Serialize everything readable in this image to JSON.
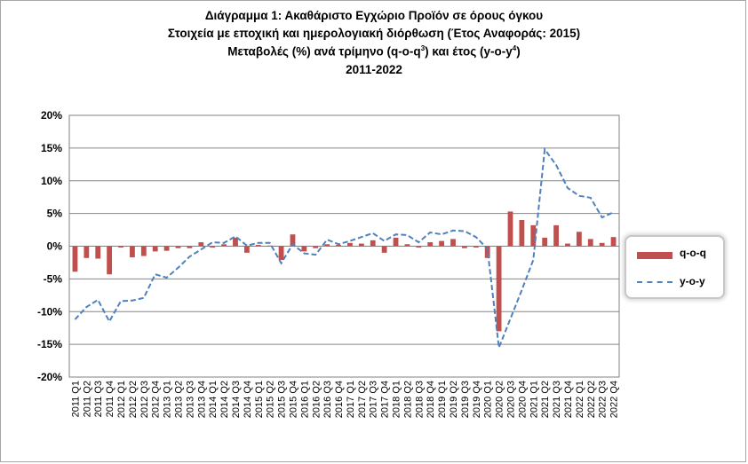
{
  "title": {
    "line1": "Διάγραμμα 1: Ακαθάριστο Εγχώριο Προϊόν σε όρους όγκου",
    "line2": "Στοιχεία με εποχική και ημερολογιακή διόρθωση (Έτος Αναφοράς: 2015)",
    "line3_pre": "Μεταβολές (%) ανά τρίμηνο (q-o-q",
    "line3_sup1": "3",
    "line3_mid": ") και έτος (y-o-y",
    "line3_sup2": "4",
    "line3_post": ")",
    "line4": "2011-2022"
  },
  "chart_data": {
    "type": "bar",
    "ylim": [
      -20,
      20
    ],
    "yticks": [
      "-20%",
      "-15%",
      "-10%",
      "-5%",
      "0%",
      "5%",
      "10%",
      "15%",
      "20%"
    ],
    "ytick_values": [
      -20,
      -15,
      -10,
      -5,
      0,
      5,
      10,
      15,
      20
    ],
    "grid": true,
    "legend_position": "right",
    "categories": [
      "2011 Q1",
      "2011 Q2",
      "2011 Q3",
      "2011 Q4",
      "2012 Q1",
      "2012 Q2",
      "2012 Q3",
      "2012 Q4",
      "2013 Q1",
      "2013 Q2",
      "2013 Q3",
      "2013 Q4",
      "2014 Q1",
      "2014 Q2",
      "2014 Q3",
      "2014 Q4",
      "2015 Q1",
      "2015 Q2",
      "2015 Q3",
      "2015 Q4",
      "2016 Q1",
      "2016 Q2",
      "2016 Q3",
      "2016 Q4",
      "2017 Q1",
      "2017 Q2",
      "2017 Q3",
      "2017 Q4",
      "2018 Q1",
      "2018 Q2",
      "2018 Q3",
      "2018 Q4",
      "2019 Q1",
      "2019 Q2",
      "2019 Q3",
      "2019 Q4",
      "2020 Q1",
      "2020 Q2",
      "2020 Q3",
      "2020 Q4",
      "2021 Q1",
      "2021 Q2",
      "2021 Q3",
      "2021 Q4",
      "2022 Q1",
      "2022 Q2",
      "2022 Q3",
      "2022 Q4"
    ],
    "series": [
      {
        "name": "q-o-q",
        "kind": "bar",
        "color": "#c0504d",
        "values": [
          -3.9,
          -1.8,
          -1.9,
          -4.3,
          -0.2,
          -1.7,
          -1.5,
          -0.8,
          -0.7,
          -0.3,
          -0.3,
          0.6,
          -0.2,
          0.3,
          1.3,
          -1.0,
          0.2,
          0.1,
          -2.1,
          1.8,
          -0.8,
          -0.3,
          0.3,
          0.2,
          0.5,
          0.4,
          0.9,
          -1.0,
          1.3,
          0.3,
          -0.2,
          0.6,
          0.8,
          1.1,
          -0.3,
          -0.2,
          -1.8,
          -13.0,
          5.3,
          4.0,
          3.2,
          1.3,
          3.2,
          0.4,
          2.2,
          1.1,
          0.5,
          1.4
        ]
      },
      {
        "name": "y-o-y",
        "kind": "line",
        "color": "#4f81bd",
        "values": [
          -11.2,
          -9.3,
          -8.2,
          -11.5,
          -8.4,
          -8.3,
          -7.9,
          -4.3,
          -4.8,
          -3.3,
          -1.6,
          -0.5,
          0.6,
          0.5,
          1.5,
          0.1,
          0.5,
          0.5,
          -2.6,
          0.3,
          -1.1,
          -1.3,
          1.0,
          0.3,
          0.8,
          1.4,
          2.0,
          0.8,
          1.8,
          1.7,
          0.6,
          2.1,
          1.8,
          2.4,
          2.3,
          1.4,
          -0.4,
          -15.5,
          -11.1,
          -6.7,
          -2.1,
          14.8,
          12.4,
          8.9,
          7.7,
          7.4,
          4.4,
          5.2
        ]
      }
    ],
    "x_tick_labels": [
      "2011 Q1",
      "2011 Q2",
      "2011 Q3",
      "2011 Q4",
      "2012 Q1",
      "2012 Q2",
      "2012 Q3",
      "2012 Q4",
      "2013 Q1",
      "2013 Q2",
      "2013 Q3",
      "2013 Q4",
      "2014 Q1",
      "2014 Q2",
      "2014 Q3",
      "2014 Q4",
      "2015 Q1",
      "2015 Q2",
      "2015 Q3",
      "2015 Q4",
      "2016 Q1",
      "2016 Q2",
      "2016 Q3",
      "2016 Q4",
      "2017 Q1",
      "2017 Q2",
      "2017 Q3",
      "2017 Q4",
      "2018 Q1",
      "2018 Q2",
      "2018 Q3",
      "2018 Q4",
      "2019 Q1",
      "2019 Q2",
      "2019 Q3",
      "2019 Q4",
      "2020 Q1",
      "2020 Q2",
      "2020 Q3",
      "2020 Q4",
      "2021 Q1",
      "2021 Q2",
      "2021 Q3",
      "2021 Q4",
      "2022 Q1",
      "2022 Q2",
      "2022 Q3",
      "2022 Q4"
    ]
  },
  "legend": {
    "bar_label": "q-o-q",
    "line_label": "y-o-y"
  }
}
